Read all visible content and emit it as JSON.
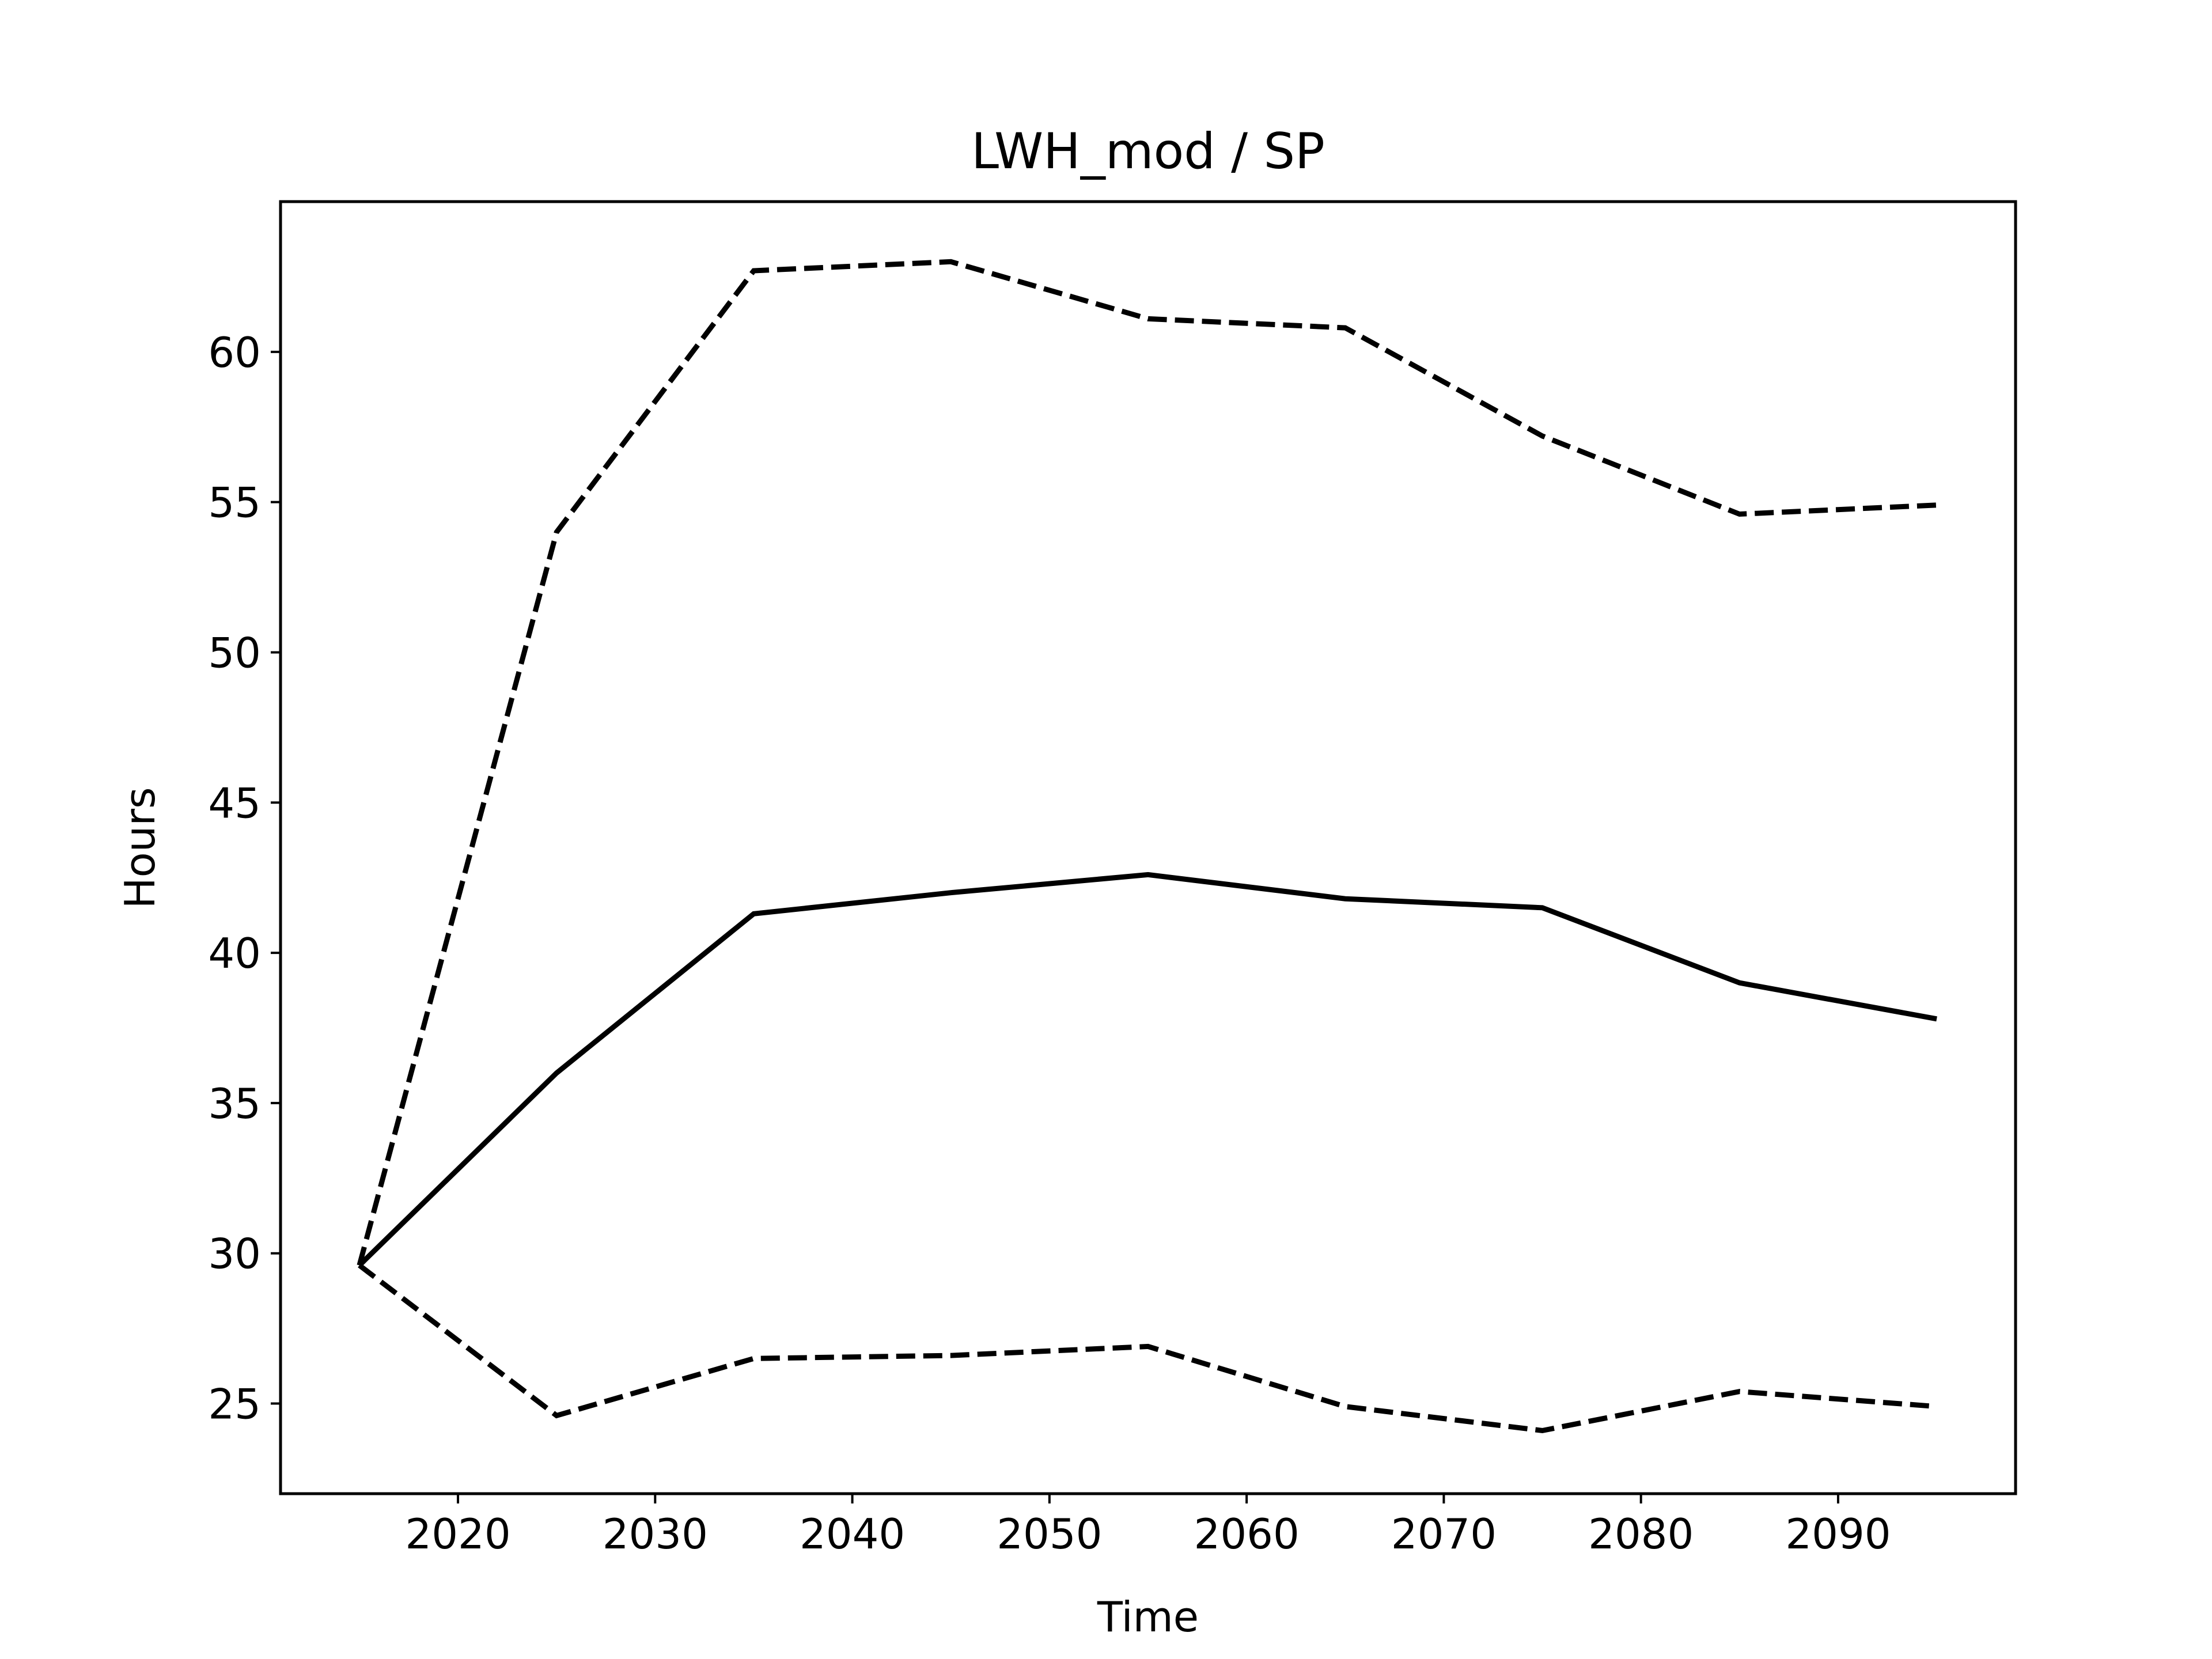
{
  "chart_data": {
    "type": "line",
    "title": "LWH_mod / SP",
    "xlabel": "Time",
    "ylabel": "Hours",
    "xlim": [
      2011,
      2099
    ],
    "ylim": [
      22,
      65
    ],
    "xticks": [
      2020,
      2030,
      2040,
      2050,
      2060,
      2070,
      2080,
      2090
    ],
    "yticks": [
      25,
      30,
      35,
      40,
      45,
      50,
      55,
      60
    ],
    "grid": false,
    "x": [
      2015,
      2025,
      2035,
      2045,
      2055,
      2065,
      2075,
      2085,
      2095
    ],
    "series": [
      {
        "style": "solid",
        "color": "#000000",
        "values": [
          29.6,
          36.0,
          41.3,
          42.0,
          42.6,
          41.8,
          41.5,
          39.0,
          37.8
        ]
      },
      {
        "style": "dashed",
        "color": "#000000",
        "values": [
          29.6,
          54.0,
          62.7,
          63.0,
          61.1,
          60.8,
          57.2,
          54.6,
          54.9
        ]
      },
      {
        "style": "dashed",
        "color": "#000000",
        "values": [
          29.6,
          24.6,
          26.5,
          26.6,
          26.9,
          24.9,
          24.1,
          25.4,
          24.9
        ]
      }
    ]
  }
}
